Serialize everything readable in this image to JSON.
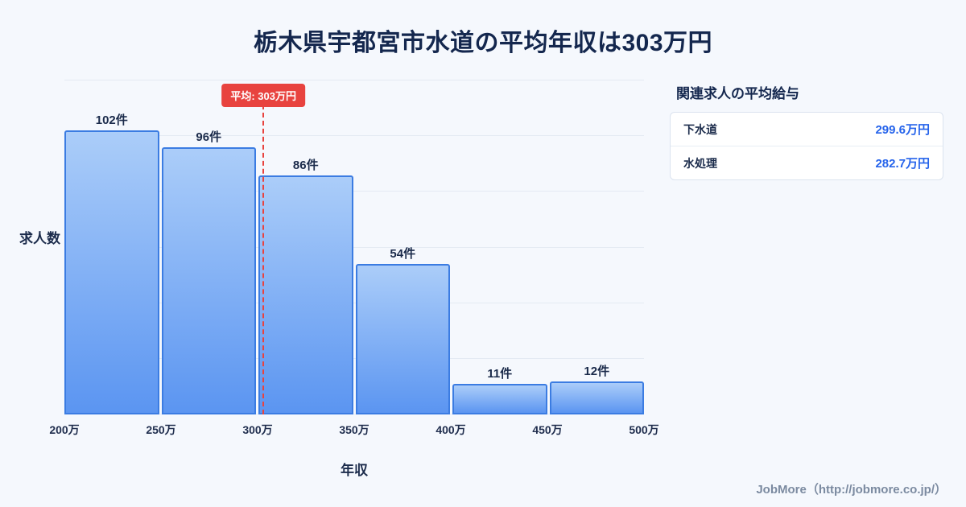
{
  "page": {
    "title": "栃木県宇都宮市水道の平均年収は303万円",
    "footer": "JobMore（http://jobmore.co.jp/）"
  },
  "chart_data": {
    "type": "bar",
    "title": "栃木県宇都宮市水道の平均年収は303万円",
    "xlabel": "年収",
    "ylabel": "求人数",
    "ylim": [
      0,
      120
    ],
    "grid": true,
    "categories": [
      "200万-250万",
      "250万-300万",
      "300万-350万",
      "350万-400万",
      "400万-450万",
      "450万-500万"
    ],
    "values": [
      102,
      96,
      86,
      54,
      11,
      12
    ],
    "bar_labels": [
      "102件",
      "96件",
      "86件",
      "54件",
      "11件",
      "12件"
    ],
    "x_ticks": [
      "200万",
      "250万",
      "300万",
      "350万",
      "400万",
      "450万",
      "500万"
    ],
    "x_range": [
      200,
      500
    ],
    "average": {
      "value": 303,
      "label": "平均: 303万円"
    },
    "colors": {
      "bar_top": "#abcdf9",
      "bar_bottom": "#5b95f1",
      "bar_border": "#3b7ce2",
      "average_line": "#e8433f",
      "title_text": "#14274e",
      "background": "#f5f8fd"
    }
  },
  "side_panel": {
    "heading": "関連求人の平均給与",
    "rows": [
      {
        "label": "下水道",
        "value": "299.6万円"
      },
      {
        "label": "水処理",
        "value": "282.7万円"
      }
    ],
    "value_color": "#2563eb"
  }
}
